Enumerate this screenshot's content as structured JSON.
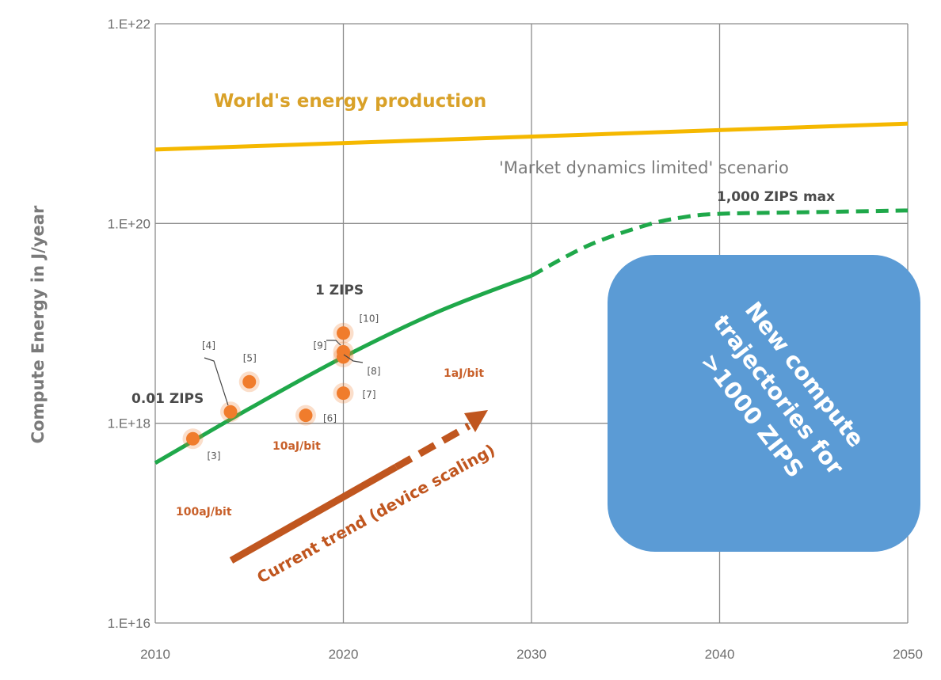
{
  "chart_data": {
    "type": "line",
    "title": "",
    "ylabel": "Compute Energy in J/year",
    "xlabel": "",
    "x_ticks": [
      2010,
      2020,
      2030,
      2040,
      2050
    ],
    "y_ticks": [
      "1.E+16",
      "1.E+18",
      "1.E+20",
      "1.E+22"
    ],
    "y_scale": "log",
    "xlim": [
      2010,
      2050
    ],
    "ylim": [
      1e+16,
      1e+22
    ],
    "grid": true,
    "series": [
      {
        "name": "World's energy production",
        "style": "solid",
        "color": "#f5b800",
        "x": [
          2010,
          2050
        ],
        "y": [
          5.5e+20,
          1e+21
        ]
      },
      {
        "name": "",
        "style": "solid",
        "color": "#1fa84a",
        "x": [
          2010,
          2015,
          2020,
          2025,
          2030
        ],
        "y": [
          4e+17,
          1.4e+18,
          4.6e+18,
          1.3e+19,
          3e+19
        ]
      },
      {
        "name": "'Market dynamics limited' scenario",
        "style": "dashed",
        "color": "#1fa84a",
        "x": [
          2030,
          2033,
          2036,
          2038,
          2040,
          2045,
          2050
        ],
        "y": [
          3e+19,
          6e+19,
          9.5e+19,
          1.15e+20,
          1.25e+20,
          1.3e+20,
          1.35e+20
        ]
      }
    ],
    "points": [
      {
        "label": "[3]",
        "x": 2012,
        "y": 7e+17
      },
      {
        "label": "[4]",
        "x": 2014,
        "y": 1.3e+18
      },
      {
        "label": "[5]",
        "x": 2015,
        "y": 2.6e+18
      },
      {
        "label": "[6]",
        "x": 2018,
        "y": 1.2e+18
      },
      {
        "label": "[7]",
        "x": 2020,
        "y": 2e+18
      },
      {
        "label": "[8]",
        "x": 2020,
        "y": 4.6e+18
      },
      {
        "label": "[9]",
        "x": 2020,
        "y": 5.2e+18
      },
      {
        "label": "[10]",
        "x": 2020,
        "y": 8e+18
      }
    ],
    "annotations": {
      "world_energy": "World's energy production",
      "market_scenario": "'Market dynamics limited' scenario",
      "zips_max": "1,000 ZIPS max",
      "zips_1": "1 ZIPS",
      "zips_001": "0.01 ZIPS",
      "aj_1": "1aJ/bit",
      "aj_10": "10aJ/bit",
      "aj_100": "100aJ/bit",
      "trend": "Current trend (device scaling)",
      "box_lines": [
        "New compute",
        "trajectories for",
        ">1000 ZIPS"
      ]
    },
    "colors": {
      "world": "#f5b800",
      "green": "#1fa84a",
      "point": "#f07c2c",
      "trend_arrow": "#c0561f",
      "box": "#5b9bd5"
    }
  }
}
